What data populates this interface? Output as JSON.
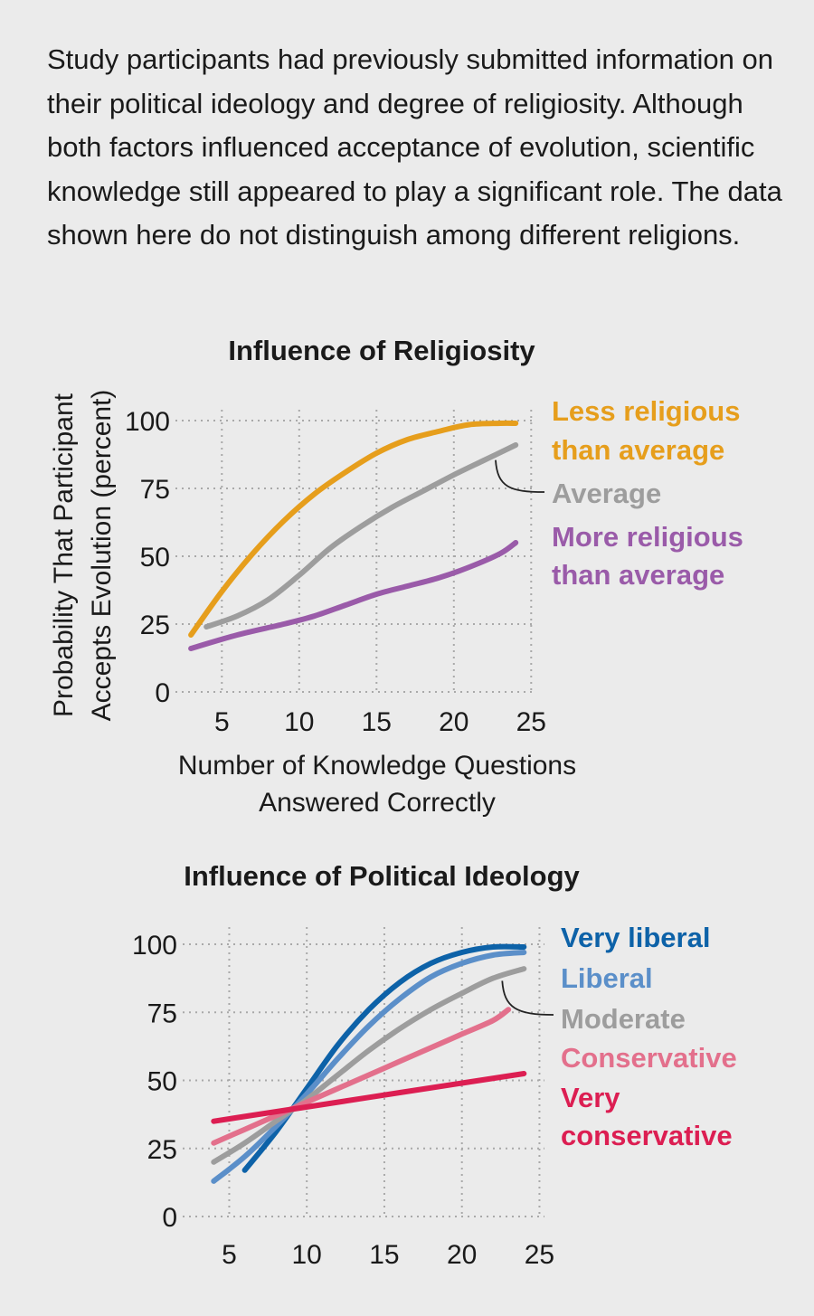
{
  "intro_text": "Study participants had previously submitted information on their political ideology and degree of religiosity. Although both factors influenced acceptance of evolution, scientific knowledge still appeared to play a significant role. The data shown here do not distinguish among different religions.",
  "chart_data": [
    {
      "type": "line",
      "title": "Influence of Religiosity",
      "ylabel": "Probability That Participant Accepts Evolution (percent)",
      "ylabel_lines": [
        "Probability That Participant",
        "Accepts Evolution (percent)"
      ],
      "xlabel": "Number of Knowledge Questions Answered Correctly",
      "xlabel_lines": [
        "Number of Knowledge Questions",
        "Answered Correctly"
      ],
      "xlim": [
        2,
        25
      ],
      "ylim": [
        0,
        100
      ],
      "xticks": [
        5,
        10,
        15,
        20,
        25
      ],
      "yticks": [
        0,
        25,
        50,
        75,
        100
      ],
      "grid": true,
      "series": [
        {
          "name": "Less religious than average",
          "label_lines": [
            "Less religious",
            "than average"
          ],
          "color": "#e69e1c",
          "x": [
            3,
            5,
            7,
            9,
            11,
            13,
            15,
            17,
            19,
            21,
            23,
            24
          ],
          "values": [
            21,
            37,
            51,
            63,
            73,
            81,
            88,
            93,
            96,
            98.5,
            99,
            99
          ]
        },
        {
          "name": "Average",
          "label_lines": [
            "Average"
          ],
          "color": "#9d9d9d",
          "x": [
            4,
            6,
            8,
            10,
            12,
            14,
            16,
            18,
            20,
            22,
            24
          ],
          "values": [
            24,
            28,
            34,
            43,
            53,
            61,
            68,
            74,
            80,
            85.5,
            91
          ]
        },
        {
          "name": "More religious than average",
          "label_lines": [
            "More religious",
            "than average"
          ],
          "color": "#9a5ba9",
          "x": [
            3,
            6,
            9,
            11,
            13,
            15,
            17,
            19,
            21,
            23,
            24
          ],
          "values": [
            16,
            21,
            25,
            28,
            32,
            36,
            39,
            42,
            46,
            51,
            55
          ]
        }
      ]
    },
    {
      "type": "line",
      "title": "Influence of Political Ideology",
      "xlim": [
        2,
        25
      ],
      "ylim": [
        0,
        100
      ],
      "xticks": [
        5,
        10,
        15,
        20,
        25
      ],
      "yticks": [
        0,
        25,
        50,
        75,
        100
      ],
      "grid": true,
      "series": [
        {
          "name": "Very liberal",
          "label_lines": [
            "Very liberal"
          ],
          "color": "#0d62a8",
          "x": [
            6,
            8,
            10,
            12,
            14,
            16,
            18,
            20,
            22,
            24
          ],
          "values": [
            17,
            31,
            47,
            63,
            76,
            86,
            93,
            97,
            99,
            99
          ]
        },
        {
          "name": "Liberal",
          "label_lines": [
            "Liberal"
          ],
          "color": "#5b8fc9",
          "x": [
            4,
            6,
            8,
            10,
            12,
            14,
            16,
            18,
            20,
            22,
            24
          ],
          "values": [
            13,
            22,
            33,
            45,
            58,
            70,
            80,
            88,
            93,
            96,
            97
          ]
        },
        {
          "name": "Moderate",
          "label_lines": [
            "Moderate"
          ],
          "color": "#9d9d9d",
          "x": [
            4,
            6,
            8,
            10,
            12,
            14,
            16,
            18,
            20,
            22,
            24
          ],
          "values": [
            20,
            27,
            35,
            43,
            52,
            61,
            69,
            76,
            82,
            87.5,
            91
          ]
        },
        {
          "name": "Conservative",
          "label_lines": [
            "Conservative"
          ],
          "color": "#e3708c",
          "x": [
            4,
            6,
            8,
            10,
            12,
            14,
            16,
            18,
            20,
            22,
            23
          ],
          "values": [
            27,
            32,
            37,
            42,
            47,
            52,
            57,
            62,
            67,
            72,
            76
          ]
        },
        {
          "name": "Very conservative",
          "label_lines": [
            "Very",
            "conservative"
          ],
          "color": "#dc1e52",
          "x": [
            4,
            8,
            12,
            16,
            20,
            24
          ],
          "values": [
            35,
            38.5,
            42,
            45.5,
            49,
            52.5
          ]
        }
      ]
    }
  ]
}
